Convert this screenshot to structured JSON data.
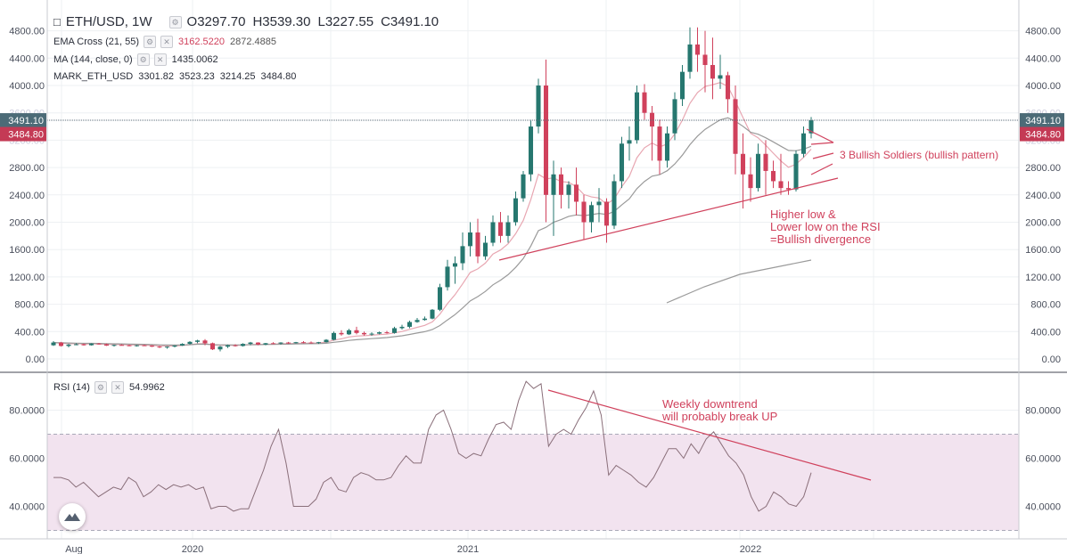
{
  "symbol": "ETH/USD, 1W",
  "ohlc": {
    "open": "O3297.70",
    "high": "H3539.30",
    "low": "L3227.55",
    "close": "C3491.10"
  },
  "indicators": {
    "ema": {
      "label": "EMA Cross (21, 55)",
      "v1": "3162.5220",
      "v2": "2872.4885"
    },
    "ma": {
      "label": "MA (144, close, 0)",
      "v1": "1435.0062"
    },
    "mark": {
      "label": "MARK_ETH_USD",
      "v1": "3301.82",
      "v2": "3523.23",
      "v3": "3214.25",
      "v4": "3484.80"
    },
    "rsi": {
      "label": "RSI (14)",
      "v1": "54.9962"
    }
  },
  "price_tags": {
    "last": "3491.10",
    "mark": "3484.80"
  },
  "annotations": {
    "soldiers": "3 Bullish Soldiers (bullish pattern)",
    "div1": "Higher low &",
    "div2": "Lower low on the RSI",
    "div3": "=Bullish divergence",
    "down1": "Weekly downtrend",
    "down2": "will probably break UP"
  },
  "colors": {
    "up": "#26776f",
    "down": "#d0415c",
    "ema_fast": "#e8a7b2",
    "ma_slow": "#9a9a9a",
    "annotation": "#d0415c",
    "rsi_band": "#f2e3ef"
  },
  "chart_data": [
    {
      "type": "candlestick",
      "title": "ETH/USD, 1W",
      "y_ticks": [
        "0.00",
        "400.00",
        "800.00",
        "1200.00",
        "1600.00",
        "2000.00",
        "2400.00",
        "2800.00",
        "3200.00",
        "3600.00",
        "4000.00",
        "4400.00",
        "4800.00"
      ],
      "ylim": [
        -150,
        4950
      ],
      "x_ticks": [
        "Aug",
        "2020",
        "2021",
        "2022"
      ],
      "candles": [
        [
          200,
          260,
          190,
          240
        ],
        [
          240,
          250,
          180,
          190
        ],
        [
          190,
          220,
          170,
          210
        ],
        [
          210,
          230,
          200,
          215
        ],
        [
          215,
          225,
          195,
          200
        ],
        [
          200,
          230,
          195,
          225
        ],
        [
          225,
          235,
          210,
          215
        ],
        [
          215,
          225,
          190,
          195
        ],
        [
          195,
          210,
          180,
          205
        ],
        [
          205,
          215,
          195,
          200
        ],
        [
          200,
          210,
          185,
          190
        ],
        [
          190,
          205,
          180,
          200
        ],
        [
          200,
          210,
          190,
          195
        ],
        [
          195,
          200,
          175,
          180
        ],
        [
          180,
          190,
          160,
          170
        ],
        [
          170,
          185,
          150,
          180
        ],
        [
          180,
          200,
          170,
          195
        ],
        [
          195,
          230,
          190,
          220
        ],
        [
          220,
          260,
          210,
          250
        ],
        [
          250,
          280,
          230,
          270
        ],
        [
          270,
          290,
          200,
          230
        ],
        [
          230,
          240,
          130,
          140
        ],
        [
          140,
          190,
          110,
          180
        ],
        [
          180,
          210,
          160,
          200
        ],
        [
          200,
          215,
          180,
          190
        ],
        [
          190,
          230,
          180,
          220
        ],
        [
          220,
          250,
          200,
          240
        ],
        [
          240,
          245,
          200,
          210
        ],
        [
          210,
          235,
          200,
          230
        ],
        [
          230,
          245,
          215,
          225
        ],
        [
          225,
          245,
          210,
          240
        ],
        [
          240,
          250,
          220,
          230
        ],
        [
          230,
          250,
          225,
          245
        ],
        [
          245,
          260,
          230,
          240
        ],
        [
          240,
          255,
          225,
          235
        ],
        [
          235,
          250,
          220,
          245
        ],
        [
          245,
          290,
          240,
          280
        ],
        [
          280,
          400,
          270,
          380
        ],
        [
          380,
          420,
          340,
          360
        ],
        [
          360,
          440,
          350,
          420
        ],
        [
          420,
          470,
          360,
          380
        ],
        [
          380,
          400,
          340,
          360
        ],
        [
          360,
          390,
          340,
          370
        ],
        [
          370,
          400,
          360,
          390
        ],
        [
          390,
          410,
          370,
          380
        ],
        [
          380,
          470,
          370,
          450
        ],
        [
          450,
          500,
          430,
          470
        ],
        [
          470,
          560,
          450,
          540
        ],
        [
          540,
          600,
          530,
          570
        ],
        [
          570,
          620,
          560,
          590
        ],
        [
          590,
          730,
          580,
          720
        ],
        [
          720,
          1100,
          700,
          1050
        ],
        [
          1050,
          1450,
          1000,
          1350
        ],
        [
          1350,
          1500,
          1100,
          1400
        ],
        [
          1400,
          1850,
          1300,
          1650
        ],
        [
          1650,
          2000,
          1500,
          1850
        ],
        [
          1850,
          2050,
          1400,
          1500
        ],
        [
          1500,
          1800,
          1450,
          1700
        ],
        [
          1700,
          2100,
          1650,
          2000
        ],
        [
          2000,
          2150,
          1700,
          1800
        ],
        [
          1800,
          2100,
          1700,
          2000
        ],
        [
          2000,
          2450,
          1950,
          2350
        ],
        [
          2350,
          2750,
          2300,
          2700
        ],
        [
          2700,
          3500,
          2600,
          3400
        ],
        [
          3400,
          4100,
          3300,
          4000
        ],
        [
          4000,
          4380,
          2000,
          2400
        ],
        [
          2400,
          2900,
          1800,
          2700
        ],
        [
          2700,
          2800,
          2200,
          2400
        ],
        [
          2400,
          2600,
          2200,
          2550
        ],
        [
          2550,
          2800,
          2100,
          2300
        ],
        [
          2300,
          2400,
          1750,
          2000
        ],
        [
          2000,
          2300,
          1850,
          2250
        ],
        [
          2250,
          2500,
          2000,
          2300
        ],
        [
          2300,
          2350,
          1700,
          1950
        ],
        [
          1950,
          2700,
          1900,
          2600
        ],
        [
          2600,
          3250,
          2500,
          3150
        ],
        [
          3150,
          3400,
          2900,
          3200
        ],
        [
          3200,
          4000,
          3150,
          3900
        ],
        [
          3900,
          4020,
          3500,
          3600
        ],
        [
          3600,
          3700,
          2900,
          3400
        ],
        [
          3400,
          3500,
          2700,
          2900
        ],
        [
          2900,
          3400,
          2800,
          3300
        ],
        [
          3300,
          3900,
          3200,
          3800
        ],
        [
          3800,
          4300,
          3700,
          4200
        ],
        [
          4200,
          4850,
          4100,
          4600
        ],
        [
          4600,
          4850,
          4200,
          4450
        ],
        [
          4450,
          4800,
          3900,
          4300
        ],
        [
          4300,
          4700,
          3800,
          4100
        ],
        [
          4100,
          4450,
          3950,
          4150
        ],
        [
          4150,
          4200,
          3600,
          3800
        ],
        [
          3800,
          4000,
          2700,
          3000
        ],
        [
          3000,
          3300,
          2200,
          2700
        ],
        [
          2700,
          2950,
          2300,
          2500
        ],
        [
          2500,
          3150,
          2450,
          3000
        ],
        [
          3000,
          3200,
          2400,
          2750
        ],
        [
          2750,
          2900,
          2500,
          2600
        ],
        [
          2600,
          3000,
          2400,
          2500
        ],
        [
          2500,
          2600,
          2400,
          2480
        ],
        [
          2480,
          3050,
          2450,
          3000
        ],
        [
          3000,
          3400,
          2950,
          3300
        ],
        [
          3300,
          3539,
          3227,
          3491
        ]
      ]
    },
    {
      "type": "line",
      "title": "RSI (14)",
      "y_ticks": [
        "40.0000",
        "60.0000",
        "80.0000"
      ],
      "ylim": [
        27,
        96
      ],
      "band": [
        30,
        70
      ],
      "values": [
        52,
        52,
        51,
        48,
        50,
        47,
        44,
        46,
        48,
        47,
        52,
        50,
        44,
        46,
        49,
        47,
        49,
        48,
        49,
        47,
        48,
        39,
        40,
        40,
        38,
        39,
        39,
        47,
        55,
        65,
        72,
        58,
        40,
        40,
        40,
        43,
        50,
        52,
        47,
        46,
        52,
        54,
        53,
        51,
        51,
        52,
        57,
        61,
        58,
        58,
        72,
        78,
        80,
        72,
        62,
        60,
        62,
        61,
        68,
        74,
        75,
        72,
        84,
        92,
        89,
        91,
        65,
        70,
        72,
        70,
        76,
        81,
        88,
        78,
        53,
        57,
        55,
        53,
        50,
        48,
        52,
        58,
        64,
        64,
        60,
        66,
        62,
        68,
        71,
        66,
        61,
        58,
        53,
        44,
        38,
        40,
        46,
        44,
        41,
        40,
        44,
        54
      ]
    }
  ]
}
